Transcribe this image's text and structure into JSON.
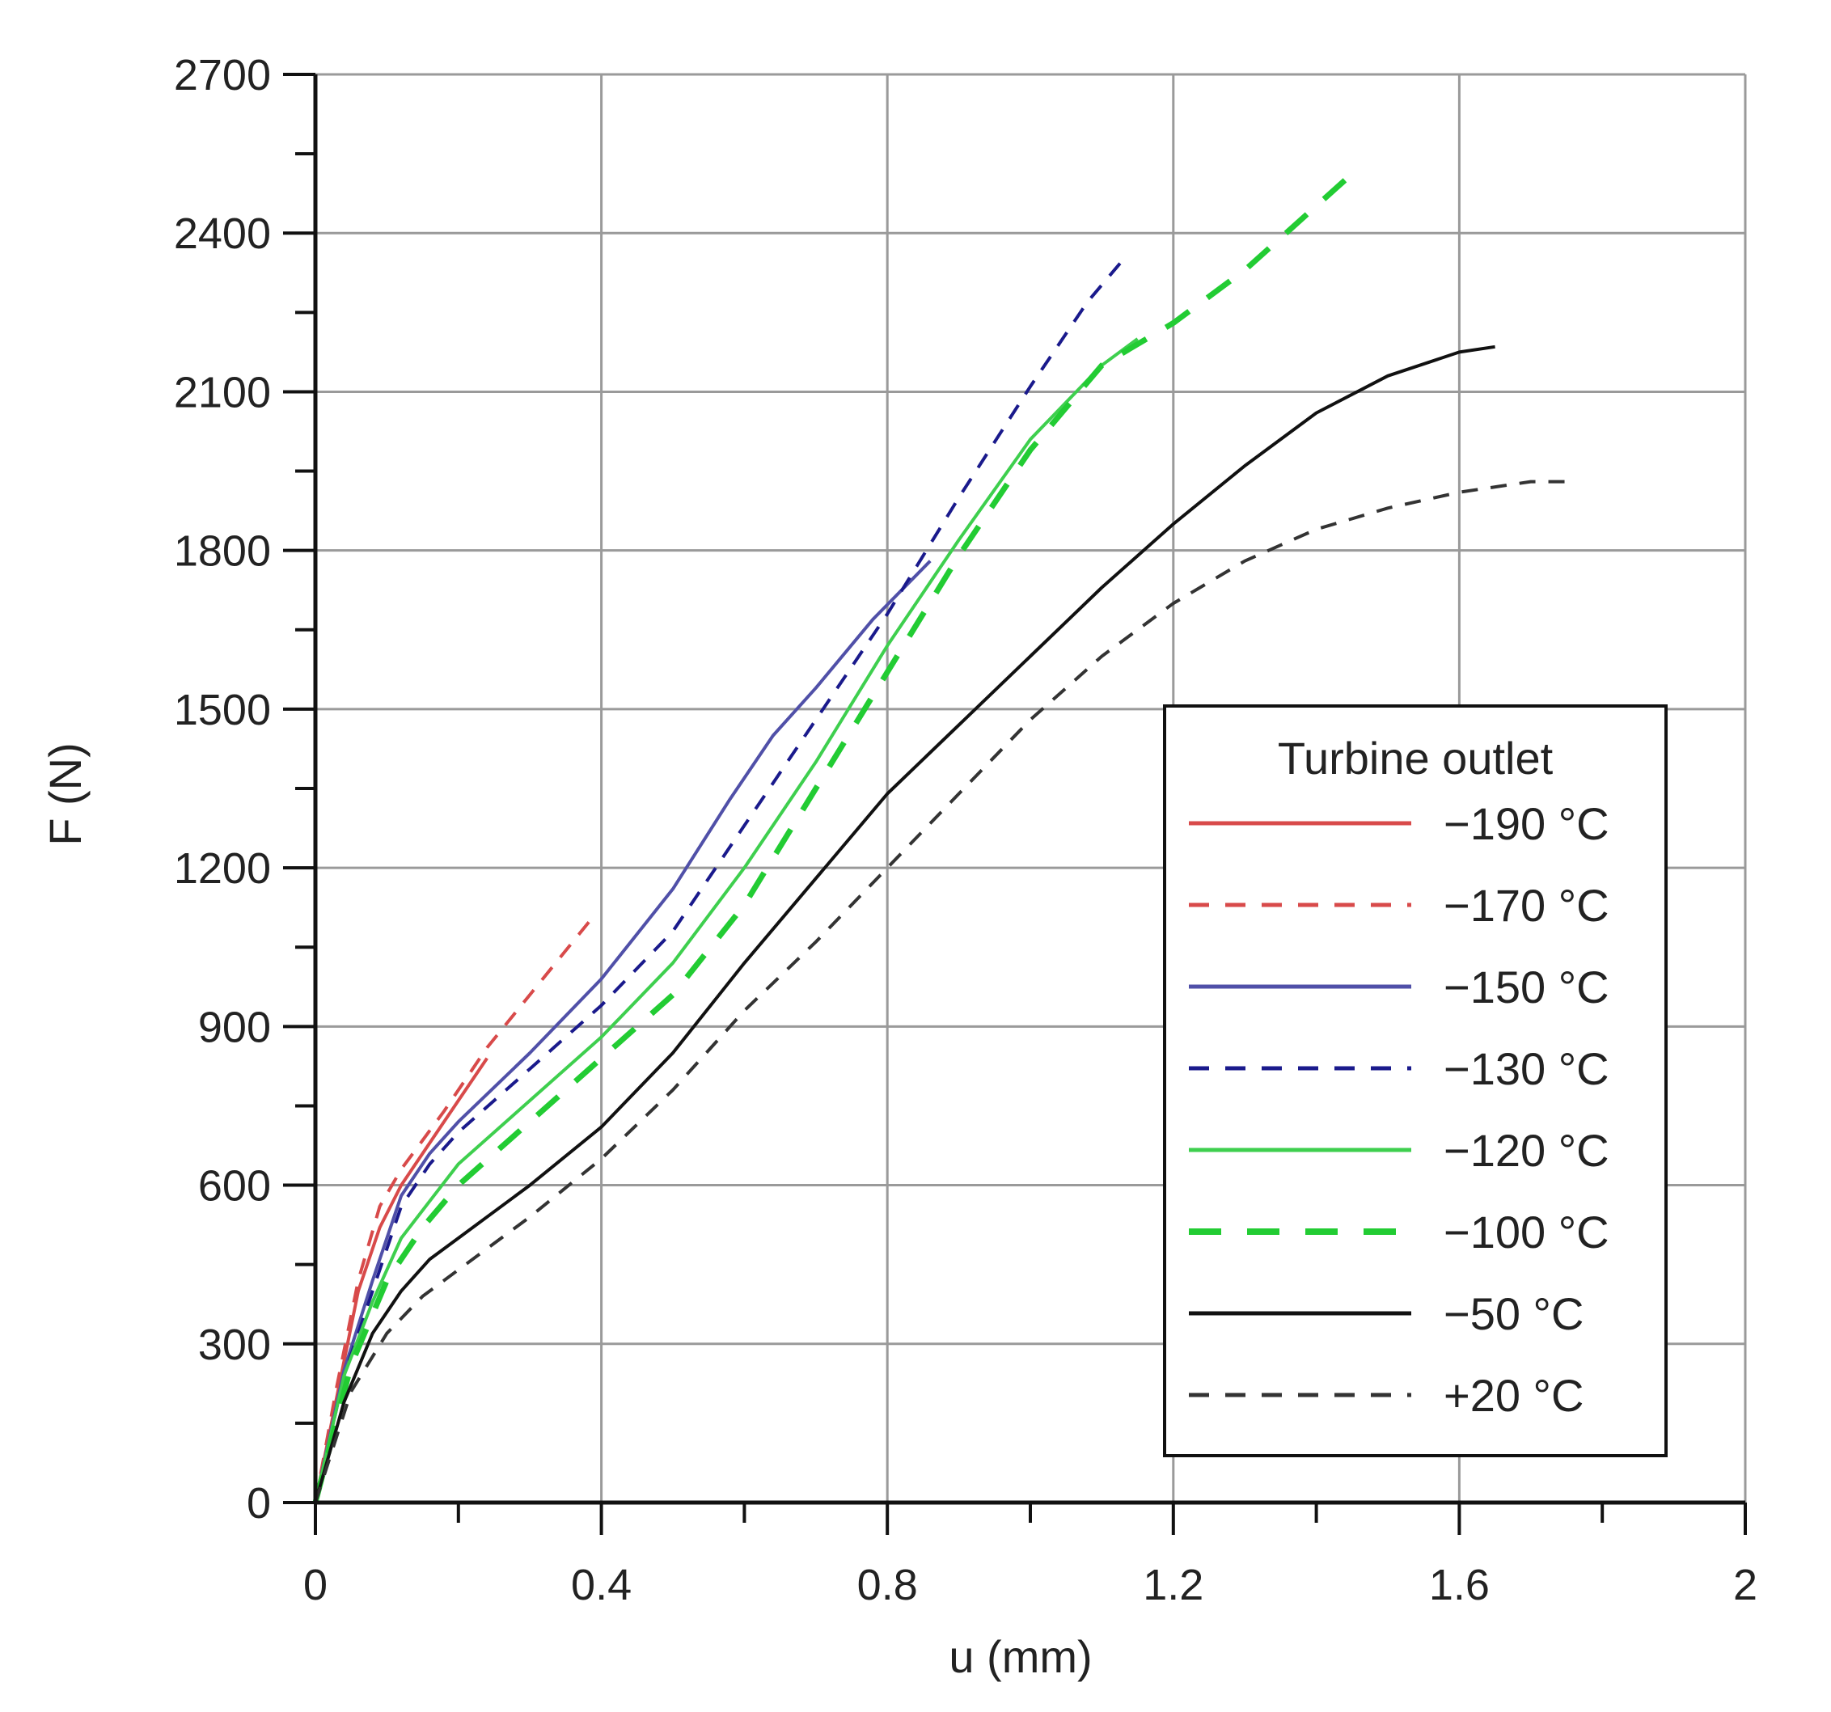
{
  "chart_data": {
    "type": "line",
    "xlabel": "u (mm)",
    "ylabel": "F (N)",
    "xlim": [
      0,
      2
    ],
    "ylim": [
      0,
      2700
    ],
    "x_ticks": [
      0,
      0.4,
      0.8,
      1.2,
      1.6,
      2
    ],
    "x_tick_labels": [
      "0",
      "0.4",
      "0.8",
      "1.2",
      "1.6",
      "2"
    ],
    "y_ticks": [
      0,
      300,
      600,
      900,
      1200,
      1500,
      1800,
      2100,
      2400,
      2700
    ],
    "y_tick_labels": [
      "0",
      "300",
      "600",
      "900",
      "1200",
      "1500",
      "1800",
      "2100",
      "2400",
      "2700"
    ],
    "grid": true,
    "legend": {
      "title": "Turbine outlet",
      "placement": "bottom-right"
    },
    "series": [
      {
        "name": "−190 °C",
        "color": "#d84a4a",
        "dash": "solid",
        "x": [
          0,
          0.03,
          0.06,
          0.09,
          0.12,
          0.16,
          0.2,
          0.24
        ],
        "y": [
          0,
          200,
          400,
          520,
          600,
          680,
          760,
          840
        ]
      },
      {
        "name": "−170 °C",
        "color": "#d84a4a",
        "dash": "dashed",
        "x": [
          0,
          0.03,
          0.06,
          0.09,
          0.12,
          0.18,
          0.24,
          0.3,
          0.36,
          0.39
        ],
        "y": [
          0,
          220,
          420,
          560,
          630,
          740,
          860,
          960,
          1060,
          1110
        ]
      },
      {
        "name": "−150 °C",
        "color": "#5050a8",
        "dash": "solid",
        "x": [
          0,
          0.04,
          0.08,
          0.12,
          0.16,
          0.2,
          0.3,
          0.4,
          0.5,
          0.58,
          0.64,
          0.7,
          0.78,
          0.86
        ],
        "y": [
          0,
          250,
          420,
          580,
          660,
          720,
          850,
          990,
          1160,
          1330,
          1450,
          1540,
          1670,
          1780
        ]
      },
      {
        "name": "−130 °C",
        "color": "#1a1a8c",
        "dash": "dashed",
        "x": [
          0,
          0.04,
          0.08,
          0.12,
          0.16,
          0.2,
          0.3,
          0.4,
          0.5,
          0.6,
          0.7,
          0.8,
          0.9,
          1.0,
          1.08,
          1.13
        ],
        "y": [
          0,
          240,
          400,
          560,
          640,
          700,
          820,
          940,
          1080,
          1280,
          1480,
          1680,
          1900,
          2110,
          2270,
          2350
        ]
      },
      {
        "name": "−120 °C",
        "color": "#3ecf4e",
        "dash": "solid",
        "x": [
          0,
          0.04,
          0.08,
          0.12,
          0.16,
          0.2,
          0.3,
          0.4,
          0.5,
          0.6,
          0.7,
          0.8,
          0.9,
          1.0,
          1.1,
          1.15
        ],
        "y": [
          0,
          240,
          380,
          500,
          570,
          640,
          760,
          880,
          1020,
          1200,
          1400,
          1620,
          1820,
          2010,
          2150,
          2200
        ]
      },
      {
        "name": "−100 °C",
        "color": "#22cc33",
        "dash": "dashed",
        "x": [
          0,
          0.05,
          0.1,
          0.15,
          0.2,
          0.3,
          0.4,
          0.5,
          0.6,
          0.7,
          0.8,
          0.9,
          1.0,
          1.1,
          1.2,
          1.3,
          1.44
        ],
        "y": [
          0,
          260,
          420,
          520,
          600,
          720,
          840,
          960,
          1130,
          1350,
          1570,
          1790,
          1990,
          2150,
          2230,
          2330,
          2500
        ]
      },
      {
        "name": "−50 °C",
        "color": "#111111",
        "dash": "solid",
        "x": [
          0,
          0.04,
          0.08,
          0.12,
          0.16,
          0.2,
          0.3,
          0.4,
          0.5,
          0.6,
          0.7,
          0.8,
          0.9,
          1.0,
          1.1,
          1.2,
          1.3,
          1.4,
          1.5,
          1.6,
          1.65
        ],
        "y": [
          0,
          190,
          320,
          400,
          460,
          500,
          600,
          710,
          850,
          1020,
          1180,
          1340,
          1470,
          1600,
          1730,
          1850,
          1960,
          2060,
          2130,
          2175,
          2185
        ]
      },
      {
        "name": "+20 °C",
        "color": "#333333",
        "dash": "dashed",
        "x": [
          0,
          0.05,
          0.1,
          0.15,
          0.2,
          0.3,
          0.4,
          0.5,
          0.6,
          0.7,
          0.8,
          0.9,
          1.0,
          1.1,
          1.2,
          1.3,
          1.4,
          1.5,
          1.6,
          1.7,
          1.76
        ],
        "y": [
          0,
          210,
          320,
          390,
          440,
          540,
          650,
          780,
          930,
          1060,
          1200,
          1340,
          1480,
          1600,
          1700,
          1780,
          1840,
          1880,
          1910,
          1930,
          1930
        ]
      }
    ]
  }
}
